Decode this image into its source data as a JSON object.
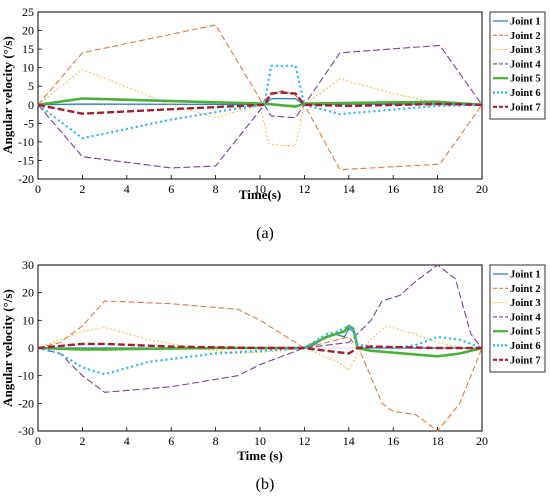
{
  "chart_data": [
    {
      "type": "line",
      "caption": "(a)",
      "xlabel": "Time(s)",
      "ylabel": "Angular velocity (°/s)",
      "xlim": [
        0,
        20
      ],
      "ylim": [
        -20,
        25
      ],
      "xticks": [
        0,
        2,
        4,
        6,
        8,
        10,
        12,
        14,
        16,
        18,
        20
      ],
      "yticks": [
        -20,
        -15,
        -10,
        -5,
        0,
        5,
        10,
        15,
        20,
        25
      ],
      "legend_position": "right",
      "series": [
        {
          "name": "Joint 1",
          "color": "#2f7fc1",
          "dash": "solid",
          "width": 1.3,
          "x": [
            0,
            2,
            8,
            10.2,
            10.5,
            11,
            11.6,
            12,
            14,
            18,
            20
          ],
          "y": [
            0,
            0.2,
            0.1,
            0,
            1.6,
            1.7,
            1.6,
            0,
            0.2,
            0.2,
            0
          ]
        },
        {
          "name": "Joint 2",
          "color": "#e07b39",
          "dash": "6,3",
          "width": 1.1,
          "x": [
            0,
            2,
            8,
            10.1,
            10.4,
            11,
            11.6,
            12,
            13.6,
            18.1,
            20
          ],
          "y": [
            0,
            14,
            21.5,
            0.5,
            2.5,
            3.8,
            2.5,
            0,
            -17.5,
            -16,
            0
          ]
        },
        {
          "name": "Joint 3",
          "color": "#f2c14e",
          "dash": "2,2",
          "width": 1.1,
          "x": [
            0,
            2,
            6,
            8,
            10,
            10.4,
            11,
            11.6,
            12,
            13.6,
            16,
            18,
            20
          ],
          "y": [
            0,
            9.5,
            0,
            -3.5,
            0,
            -10.5,
            -11,
            -11,
            0,
            7,
            3,
            0.5,
            0
          ]
        },
        {
          "name": "Joint 4",
          "color": "#7b3f9e",
          "dash": "7,3",
          "width": 1.1,
          "x": [
            0,
            2,
            6,
            8,
            10.2,
            10.5,
            11.6,
            12,
            13.6,
            18.1,
            20
          ],
          "y": [
            0,
            -14,
            -17,
            -16.5,
            0,
            -3,
            -3.5,
            0,
            14,
            16,
            0
          ]
        },
        {
          "name": "Joint 5",
          "color": "#4caf3a",
          "dash": "solid",
          "width": 2.6,
          "x": [
            0,
            2,
            6,
            10.2,
            11.6,
            12,
            14,
            18,
            20
          ],
          "y": [
            0,
            1.7,
            1,
            0.3,
            -0.5,
            0.3,
            0.5,
            0.8,
            0
          ]
        },
        {
          "name": "Joint 6",
          "color": "#29b6f6",
          "dash": "2,3",
          "width": 2.2,
          "x": [
            0,
            2,
            6,
            9,
            10.2,
            10.5,
            11.6,
            12,
            13.6,
            18,
            20
          ],
          "y": [
            0,
            -9,
            -4,
            -1,
            0,
            10.5,
            10.5,
            0,
            -2.5,
            -0.3,
            0
          ]
        },
        {
          "name": "Joint 7",
          "color": "#a31f34",
          "dash": "7,3",
          "width": 2.4,
          "x": [
            0,
            2,
            6,
            10.2,
            10.5,
            11,
            11.6,
            12,
            14,
            18,
            20
          ],
          "y": [
            0,
            -2.4,
            -1.2,
            0,
            3,
            3.3,
            3,
            0,
            -0.3,
            0.2,
            0
          ]
        }
      ]
    },
    {
      "type": "line",
      "caption": "(b)",
      "xlabel": "Time (s)",
      "ylabel": "Angular velocity (°/s)",
      "xlim": [
        0,
        20
      ],
      "ylim": [
        -30,
        30
      ],
      "xticks": [
        0,
        2,
        4,
        6,
        8,
        10,
        12,
        14,
        16,
        18,
        20
      ],
      "yticks": [
        -30,
        -20,
        -10,
        0,
        10,
        20,
        30
      ],
      "legend_position": "right",
      "series": [
        {
          "name": "Joint 1",
          "color": "#2f7fc1",
          "dash": "solid",
          "width": 1.3,
          "x": [
            0,
            3,
            9,
            12.2,
            12.8,
            13.4,
            13.8,
            14,
            14.2,
            14.4,
            16,
            18,
            20
          ],
          "y": [
            0,
            0,
            0,
            0,
            3,
            5,
            4,
            7,
            6,
            0,
            0,
            0,
            0
          ]
        },
        {
          "name": "Joint 2",
          "color": "#e07b39",
          "dash": "6,3",
          "width": 1.1,
          "x": [
            0,
            1,
            2,
            3,
            6,
            9,
            10,
            12,
            13,
            14,
            14.5,
            15.5,
            16,
            17,
            18,
            19,
            20
          ],
          "y": [
            0,
            2,
            8,
            17,
            16,
            14,
            10,
            0,
            2,
            4,
            -1,
            -20,
            -23,
            -24,
            -30,
            -20,
            0
          ]
        },
        {
          "name": "Joint 3",
          "color": "#f2c14e",
          "dash": "2,2",
          "width": 1.1,
          "x": [
            0,
            1,
            2,
            3,
            5,
            7,
            9,
            11,
            12,
            13.5,
            14,
            14.4,
            15,
            15.7,
            17,
            18,
            19.2,
            20
          ],
          "y": [
            0,
            3,
            6,
            7.5,
            3,
            0,
            -2,
            -1,
            0,
            -5,
            -8,
            -2,
            3,
            8,
            5,
            2,
            0,
            0
          ]
        },
        {
          "name": "Joint 4",
          "color": "#7b3f9e",
          "dash": "7,3",
          "width": 1.1,
          "x": [
            0,
            1,
            2,
            3,
            6,
            9,
            10,
            12,
            13,
            14,
            15,
            15.5,
            16.3,
            17,
            18,
            18.8,
            19.5,
            20
          ],
          "y": [
            0,
            -2,
            -10,
            -16,
            -14,
            -10,
            -6,
            0,
            1,
            2,
            10,
            17,
            19,
            24,
            30,
            25,
            5,
            0
          ]
        },
        {
          "name": "Joint 5",
          "color": "#4caf3a",
          "dash": "solid",
          "width": 2.6,
          "x": [
            0,
            2,
            3,
            8,
            12,
            13,
            13.8,
            14,
            14.2,
            14.4,
            15,
            18,
            19,
            20
          ],
          "y": [
            0,
            -0.5,
            -0.5,
            0,
            0,
            4,
            6,
            8,
            7,
            0,
            -1,
            -3,
            -2,
            0
          ]
        },
        {
          "name": "Joint 6",
          "color": "#29b6f6",
          "dash": "2,3",
          "width": 2.2,
          "x": [
            0,
            1,
            2,
            3,
            5,
            8,
            10,
            12,
            13,
            13.5,
            14,
            14.2,
            14.4,
            16,
            17,
            18,
            19,
            20
          ],
          "y": [
            0,
            -2,
            -7,
            -9.5,
            -5,
            -2,
            -1,
            0,
            5,
            6,
            8,
            7,
            1,
            0,
            1,
            4,
            3,
            0
          ]
        },
        {
          "name": "Joint 7",
          "color": "#a31f34",
          "dash": "7,3",
          "width": 2.4,
          "x": [
            0,
            2,
            3,
            6,
            10,
            12,
            13,
            14,
            14.4,
            15,
            18,
            20
          ],
          "y": [
            0,
            1.5,
            1.5,
            0.5,
            0,
            0,
            -1,
            -2,
            0,
            0.5,
            0,
            0
          ]
        }
      ]
    }
  ]
}
